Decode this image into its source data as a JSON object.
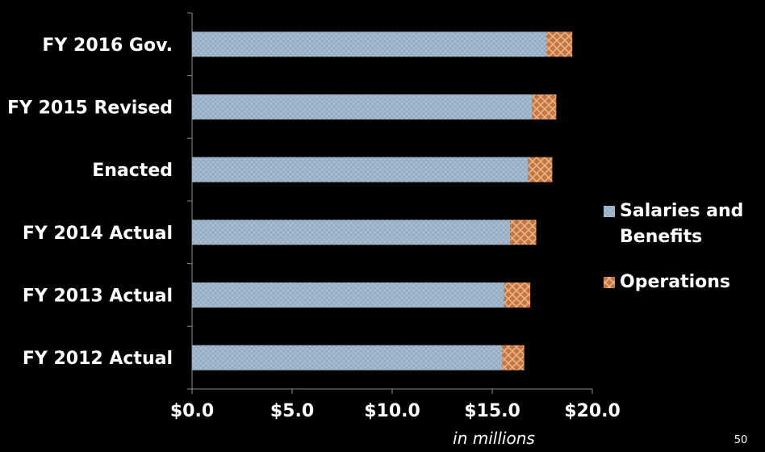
{
  "chart_data": {
    "type": "bar",
    "orientation": "horizontal",
    "stacked": true,
    "categories": [
      "FY 2016 Gov.",
      "FY 2015 Revised",
      "Enacted",
      "FY 2014 Actual",
      "FY 2013 Actual",
      "FY 2012 Actual"
    ],
    "series": [
      {
        "name": "Salaries and Benefits",
        "color": "#a3b8cc",
        "values": [
          17.7,
          17.0,
          16.8,
          15.9,
          15.6,
          15.5
        ]
      },
      {
        "name": "Operations",
        "color": "#c0703a",
        "values": [
          1.3,
          1.2,
          1.2,
          1.3,
          1.3,
          1.1
        ]
      }
    ],
    "xlim": [
      0,
      20
    ],
    "xticks": [
      0,
      5,
      10,
      15,
      20
    ],
    "xtick_labels": [
      "$0.0",
      "$5.0",
      "$10.0",
      "$15.0",
      "$20.0"
    ],
    "xlabel": "in millions",
    "legend_position": "right",
    "legend": [
      {
        "lines": [
          "Salaries and",
          "Benefits"
        ]
      },
      {
        "lines": [
          "Operations"
        ]
      }
    ],
    "grid": false
  },
  "page_number": "50"
}
